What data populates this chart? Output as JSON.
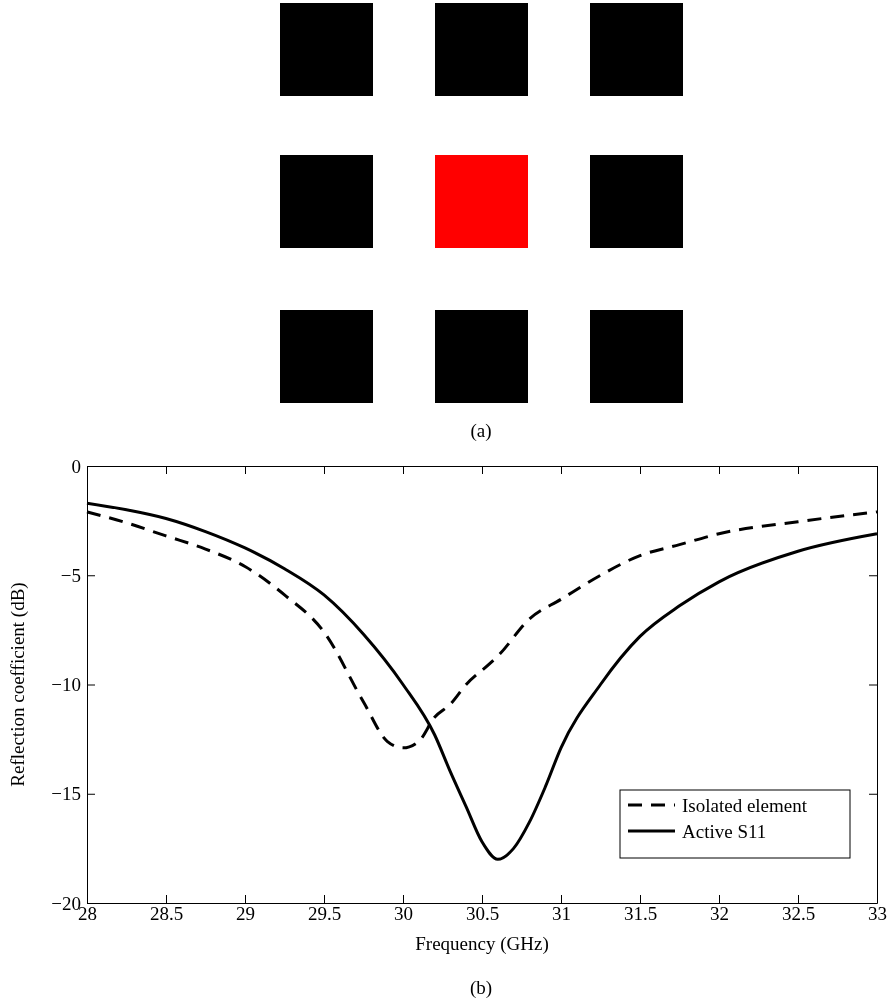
{
  "chart_data": {
    "type": "line",
    "xlabel": "Frequency (GHz)",
    "ylabel": "Reflection coefficient (dB)",
    "annotations": [
      "(a)",
      "(b)"
    ],
    "xlim": [
      28,
      33
    ],
    "xticks": [
      28,
      28.5,
      29,
      29.5,
      30,
      30.5,
      31,
      31.5,
      32,
      32.5,
      33
    ],
    "ylim": [
      -20,
      0
    ],
    "yticks": [
      -20,
      -15,
      -10,
      -5,
      0
    ],
    "grid": false,
    "legend": "bottom right",
    "series": [
      {
        "name": "Isolated element",
        "color": "#000000",
        "line_style": "dashed",
        "x": [
          28,
          28.25,
          28.5,
          28.75,
          29,
          29.25,
          29.5,
          29.75,
          29.9,
          30,
          30.1,
          30.2,
          30.3,
          30.4,
          30.54,
          30.6,
          30.8,
          31,
          31.25,
          31.5,
          31.75,
          32,
          32.5,
          33
        ],
        "values": [
          -2.1,
          -2.6,
          -3.2,
          -3.8,
          -4.6,
          -5.9,
          -7.6,
          -10.8,
          -12.6,
          -12.9,
          -12.6,
          -11.5,
          -10.9,
          -10,
          -9.1,
          -8.7,
          -7,
          -6.1,
          -5,
          -4.1,
          -3.6,
          -3.1,
          -2.55,
          -2.1
        ]
      },
      {
        "name": "Active S11",
        "color": "#000000",
        "line_style": "solid",
        "x": [
          28,
          28.25,
          28.5,
          28.75,
          29,
          29.25,
          29.5,
          29.75,
          30,
          30.2,
          30.3,
          30.4,
          30.5,
          30.6,
          30.7,
          30.8,
          30.9,
          31,
          31.25,
          31.5,
          31.75,
          32,
          32.5,
          33
        ],
        "values": [
          -1.7,
          -2,
          -2.4,
          -3,
          -3.75,
          -4.7,
          -5.9,
          -7.7,
          -10,
          -12.3,
          -14,
          -15.6,
          -17.2,
          -18,
          -17.5,
          -16.3,
          -14.7,
          -12.9,
          -10,
          -7.8,
          -6.4,
          -5.3,
          -3.9,
          -3.1
        ]
      }
    ]
  }
}
